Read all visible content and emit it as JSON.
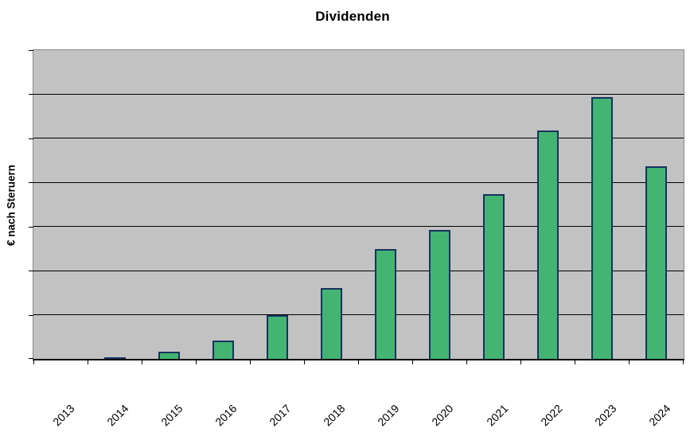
{
  "chart_data": {
    "type": "bar",
    "title": "Dividenden",
    "ylabel": "€ nach Steruern",
    "xlabel": "",
    "categories": [
      "2013",
      "2014",
      "2015",
      "2016",
      "2017",
      "2018",
      "2019",
      "2020",
      "2021",
      "2022",
      "2023",
      "2024"
    ],
    "series": [
      {
        "name": "Dividenden",
        "values": [
          0,
          0.045,
          0.16,
          0.41,
          1.0,
          1.6,
          2.49,
          2.93,
          3.74,
          5.18,
          5.93,
          4.37
        ]
      }
    ],
    "value_unit": "relative gridline units (y-axis shows no numeric tick labels; 1.0 = one gridline interval)",
    "ylim": [
      0,
      7
    ],
    "grid": "horizontal black gridlines on silver plot area, 7 equal intervals",
    "legend": "none",
    "x_tick_style": "category-boundary ticks below axis, labels rotated 45 degrees",
    "colors": {
      "bar_fill": "#43b472",
      "bar_border": "#16335e",
      "plot_background": "#c2c2c2",
      "gridline": "#000000",
      "axis": "#000000",
      "plot_border": "#8a8a8a",
      "page_background": "#ffffff",
      "text": "#000000"
    }
  }
}
